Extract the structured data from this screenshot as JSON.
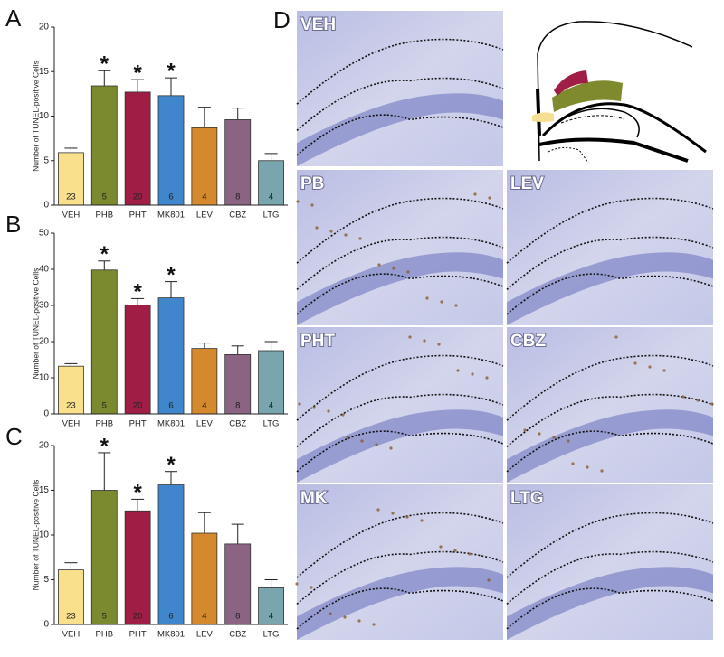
{
  "chart_data": [
    {
      "type": "bar",
      "panel": "A",
      "ylabel": "Number of TUNEL-positive Cells",
      "categories": [
        "VEH",
        "PHB",
        "PHT",
        "MK801",
        "LEV",
        "CBZ",
        "LTG"
      ],
      "values": [
        5.9,
        13.4,
        12.7,
        12.3,
        8.7,
        9.6,
        5.0
      ],
      "errors": [
        0.5,
        1.7,
        1.4,
        2.0,
        2.3,
        1.3,
        0.8
      ],
      "n": [
        23,
        5,
        20,
        6,
        4,
        8,
        4
      ],
      "significant": [
        false,
        true,
        true,
        true,
        false,
        false,
        false
      ],
      "marker": "*",
      "colors": [
        "#f9e08d",
        "#7b8a2f",
        "#a01d46",
        "#3f86cc",
        "#d4892c",
        "#8b6484",
        "#79a5ae"
      ],
      "ylim": [
        0,
        20
      ],
      "yticks": [
        0,
        5,
        10,
        15,
        20
      ]
    },
    {
      "type": "bar",
      "panel": "B",
      "ylabel": "Number of TUNEL-positive Cells",
      "categories": [
        "VEH",
        "PHB",
        "PHT",
        "MK801",
        "LEV",
        "CBZ",
        "LTG"
      ],
      "values": [
        13.2,
        39.8,
        30.1,
        32.1,
        18.1,
        16.4,
        17.5
      ],
      "errors": [
        0.7,
        2.5,
        1.8,
        4.5,
        1.5,
        2.4,
        2.5
      ],
      "n": [
        23,
        5,
        20,
        6,
        4,
        8,
        4
      ],
      "significant": [
        false,
        true,
        true,
        true,
        false,
        false,
        false
      ],
      "marker": "*",
      "colors": [
        "#f9e08d",
        "#7b8a2f",
        "#a01d46",
        "#3f86cc",
        "#d4892c",
        "#8b6484",
        "#79a5ae"
      ],
      "ylim": [
        0,
        50
      ],
      "yticks": [
        0,
        10,
        20,
        30,
        40,
        50
      ]
    },
    {
      "type": "bar",
      "panel": "C",
      "ylabel": "Number of TUNEL-positive Cells",
      "categories": [
        "VEH",
        "PHB",
        "PHT",
        "MK801",
        "LEV",
        "CBZ",
        "LTG"
      ],
      "values": [
        6.1,
        15.0,
        12.7,
        15.6,
        10.2,
        9.0,
        4.1
      ],
      "errors": [
        0.8,
        4.2,
        1.3,
        1.5,
        2.3,
        2.2,
        0.9
      ],
      "n": [
        23,
        5,
        20,
        6,
        4,
        8,
        4
      ],
      "significant": [
        false,
        true,
        true,
        true,
        false,
        false,
        false
      ],
      "marker": "*",
      "colors": [
        "#f9e08d",
        "#7b8a2f",
        "#a01d46",
        "#3f86cc",
        "#d4892c",
        "#8b6484",
        "#79a5ae"
      ],
      "ylim": [
        0,
        20
      ],
      "yticks": [
        0,
        5,
        10,
        15,
        20
      ]
    }
  ],
  "panel_d": {
    "letter": "D",
    "micrographs": [
      "VEH",
      "PB",
      "LEV",
      "PHT",
      "CBZ",
      "MK",
      "LTG"
    ]
  }
}
